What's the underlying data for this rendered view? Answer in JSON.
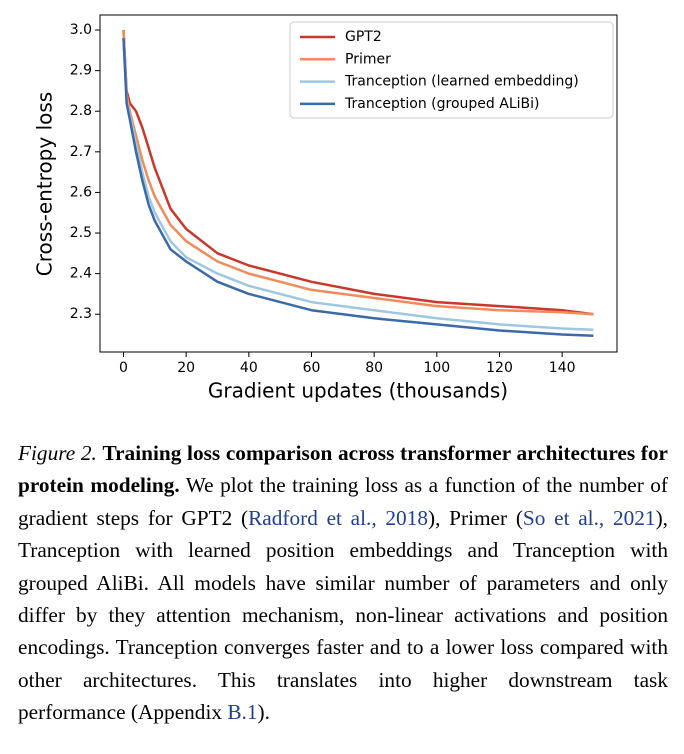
{
  "chart_data": {
    "type": "line",
    "xlabel": "Gradient updates (thousands)",
    "ylabel": "Cross-entropy loss",
    "x": [
      0,
      1,
      2,
      4,
      6,
      8,
      10,
      15,
      20,
      30,
      40,
      60,
      80,
      100,
      120,
      140,
      150
    ],
    "series": [
      {
        "name": "GPT2",
        "color": "#c8382b",
        "values": [
          3.0,
          2.85,
          2.82,
          2.8,
          2.76,
          2.71,
          2.66,
          2.56,
          2.51,
          2.45,
          2.42,
          2.38,
          2.35,
          2.33,
          2.32,
          2.31,
          2.3
        ]
      },
      {
        "name": "Primer",
        "color": "#f08c5a",
        "values": [
          3.0,
          2.84,
          2.8,
          2.74,
          2.68,
          2.63,
          2.59,
          2.52,
          2.48,
          2.43,
          2.4,
          2.36,
          2.34,
          2.32,
          2.31,
          2.305,
          2.3
        ]
      },
      {
        "name": "Tranception (learned embedding)",
        "color": "#9ec8e2",
        "values": [
          2.98,
          2.83,
          2.79,
          2.72,
          2.65,
          2.59,
          2.55,
          2.48,
          2.44,
          2.4,
          2.37,
          2.33,
          2.31,
          2.29,
          2.275,
          2.265,
          2.262
        ]
      },
      {
        "name": "Tranception (grouped ALiBi)",
        "color": "#3a6aaa",
        "values": [
          2.98,
          2.82,
          2.78,
          2.7,
          2.63,
          2.57,
          2.53,
          2.46,
          2.43,
          2.38,
          2.35,
          2.31,
          2.29,
          2.275,
          2.26,
          2.25,
          2.247
        ]
      }
    ],
    "xlim": [
      -7.5,
      157.5
    ],
    "xticks": [
      0,
      20,
      40,
      60,
      80,
      100,
      120,
      140
    ],
    "ylim": [
      2.207,
      3.037
    ],
    "yticks": [
      2.3,
      2.4,
      2.5,
      2.6,
      2.7,
      2.8,
      2.9,
      {
        "value": 3.0,
        "label": "3.0"
      }
    ],
    "legend": "upper right"
  },
  "caption": {
    "label": "Figure 2.",
    "title": "Training loss comparison across transformer architectures for protein modeling.",
    "body": [
      "We plot the training loss as a function of the number of gradient steps for GPT2 (",
      {
        "cite": "Radford et al., 2018"
      },
      "), Primer (",
      {
        "cite": "So et al., 2021"
      },
      "), Tranception with learned position embeddings and Tranception with grouped AliBi. All models have similar number of parameters and only differ by they attention mechanism, non-linear activations and position encodings. Tranception converges faster and to a lower loss compared with other architectures. This translates into higher downstream task performance (Appendix ",
      {
        "cite": "B.1"
      },
      ")."
    ]
  }
}
